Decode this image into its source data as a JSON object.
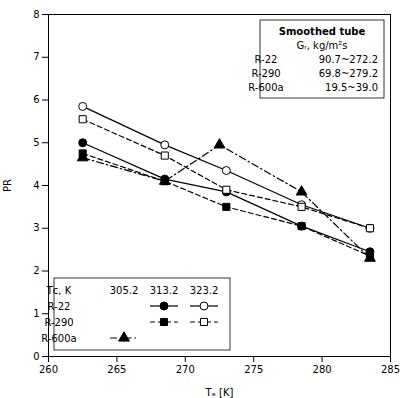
{
  "chart_data": {
    "type": "line",
    "title": "Smoothed tube",
    "xlabel": "Tₑ [K]",
    "ylabel": "PR",
    "xlim": [
      260,
      285
    ],
    "ylim": [
      0,
      8
    ],
    "xticks": [
      260,
      265,
      270,
      275,
      280,
      285
    ],
    "yticks": [
      0,
      1,
      2,
      3,
      4,
      5,
      6,
      7,
      8
    ],
    "series": [
      {
        "refrigerant": "R-22",
        "tc": "313.2",
        "x": [
          262.5,
          268.5,
          273.0,
          278.5,
          283.5
        ],
        "values": [
          5.0,
          4.15,
          3.85,
          3.05,
          2.45
        ],
        "color": "black",
        "marker": "filled-circle",
        "line_style": "solid"
      },
      {
        "refrigerant": "R-22",
        "tc": "323.2",
        "x": [
          262.5,
          268.5,
          273.0,
          278.5,
          283.5
        ],
        "values": [
          5.85,
          4.95,
          4.35,
          3.55,
          3.0
        ],
        "color": "black",
        "marker": "open-circle",
        "line_style": "solid"
      },
      {
        "refrigerant": "R-290",
        "tc": "313.2",
        "x": [
          262.5,
          268.5,
          273.0,
          278.5,
          283.5
        ],
        "values": [
          4.75,
          4.1,
          3.5,
          3.05,
          2.35
        ],
        "color": "black",
        "marker": "filled-square",
        "line_style": "dashed"
      },
      {
        "refrigerant": "R-290",
        "tc": "323.2",
        "x": [
          262.5,
          268.5,
          273.0,
          278.5,
          283.5
        ],
        "values": [
          5.55,
          4.7,
          3.9,
          3.5,
          3.0
        ],
        "color": "black",
        "marker": "open-square",
        "line_style": "dashed"
      },
      {
        "refrigerant": "R-600a",
        "tc": "305.2",
        "x": [
          262.5,
          268.5,
          272.5,
          278.5,
          283.5
        ],
        "values": [
          4.65,
          4.1,
          4.95,
          3.85,
          2.3
        ],
        "color": "black",
        "marker": "filled-triangle",
        "line_style": "dashdot"
      }
    ],
    "info_box": {
      "header": "Gᵣ, kg/m²s",
      "rows": [
        [
          "R-22",
          "90.7~272.2"
        ],
        [
          "R-290",
          "69.8~279.2"
        ],
        [
          "R-600a",
          "19.5~39.0"
        ]
      ]
    },
    "legend_table": {
      "header": [
        "Tᴄ, K",
        "305.2",
        "313.2",
        "323.2"
      ],
      "rows": [
        "R-22",
        "R-290",
        "R-600a"
      ]
    }
  }
}
